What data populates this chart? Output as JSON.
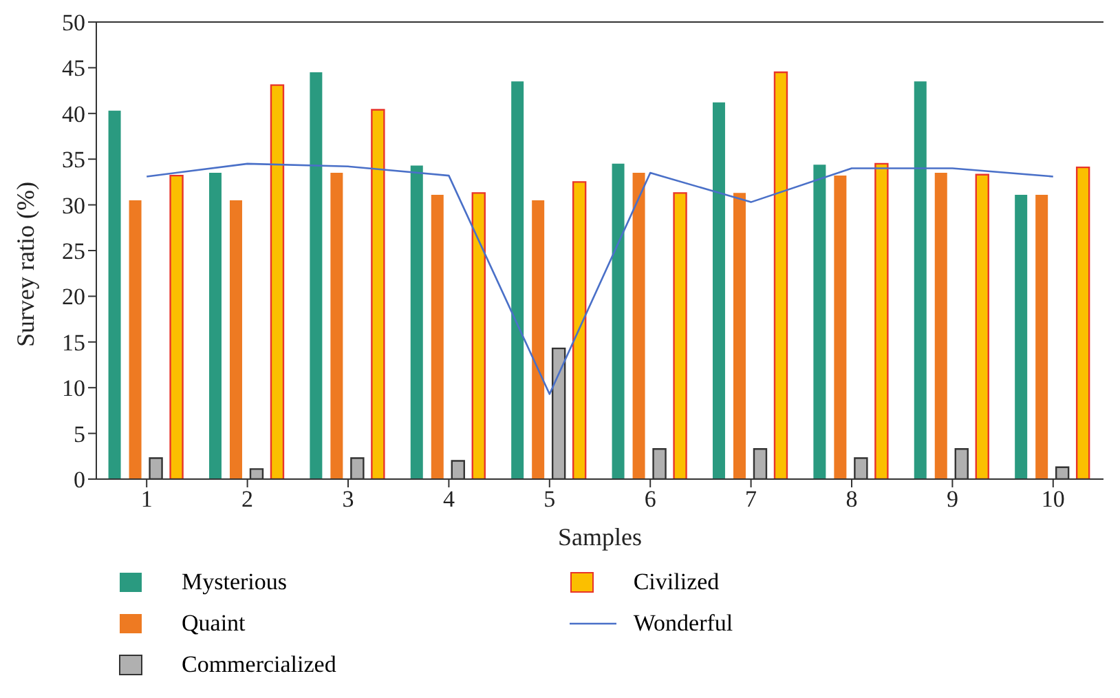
{
  "chart_data": {
    "type": "bar",
    "xlabel": "Samples",
    "ylabel": "Survey ratio (%)",
    "categories": [
      "1",
      "2",
      "3",
      "4",
      "5",
      "6",
      "7",
      "8",
      "9",
      "10"
    ],
    "series": [
      {
        "name": "Mysterious",
        "color": "#2a9a80",
        "values": [
          40.3,
          33.5,
          44.5,
          34.3,
          43.5,
          34.5,
          41.2,
          34.4,
          43.5,
          31.1
        ]
      },
      {
        "name": "Quaint",
        "color": "#ee7a22",
        "values": [
          30.5,
          30.5,
          33.5,
          31.1,
          30.5,
          33.5,
          31.3,
          33.2,
          33.5,
          31.1
        ]
      },
      {
        "name": "Commercialized",
        "color": "#b0b0b0",
        "values": [
          2.3,
          1.1,
          2.3,
          2.0,
          14.3,
          3.3,
          3.3,
          2.3,
          3.3,
          1.3
        ]
      },
      {
        "name": "Civilized",
        "color": "#fbbf00",
        "values": [
          33.2,
          43.1,
          40.4,
          31.3,
          32.5,
          31.3,
          44.5,
          34.5,
          33.3,
          34.1
        ]
      },
      {
        "name": "Wonderful",
        "type": "line",
        "color": "#4a70c8",
        "values": [
          33.1,
          34.5,
          34.2,
          33.2,
          9.3,
          33.5,
          30.3,
          34.0,
          34.0,
          33.1
        ]
      }
    ],
    "ylim": [
      0,
      50
    ],
    "yticks": [
      0,
      5,
      10,
      15,
      20,
      25,
      30,
      35,
      40,
      45,
      50
    ],
    "grid": false,
    "legend": "bottom",
    "marker": "none"
  }
}
